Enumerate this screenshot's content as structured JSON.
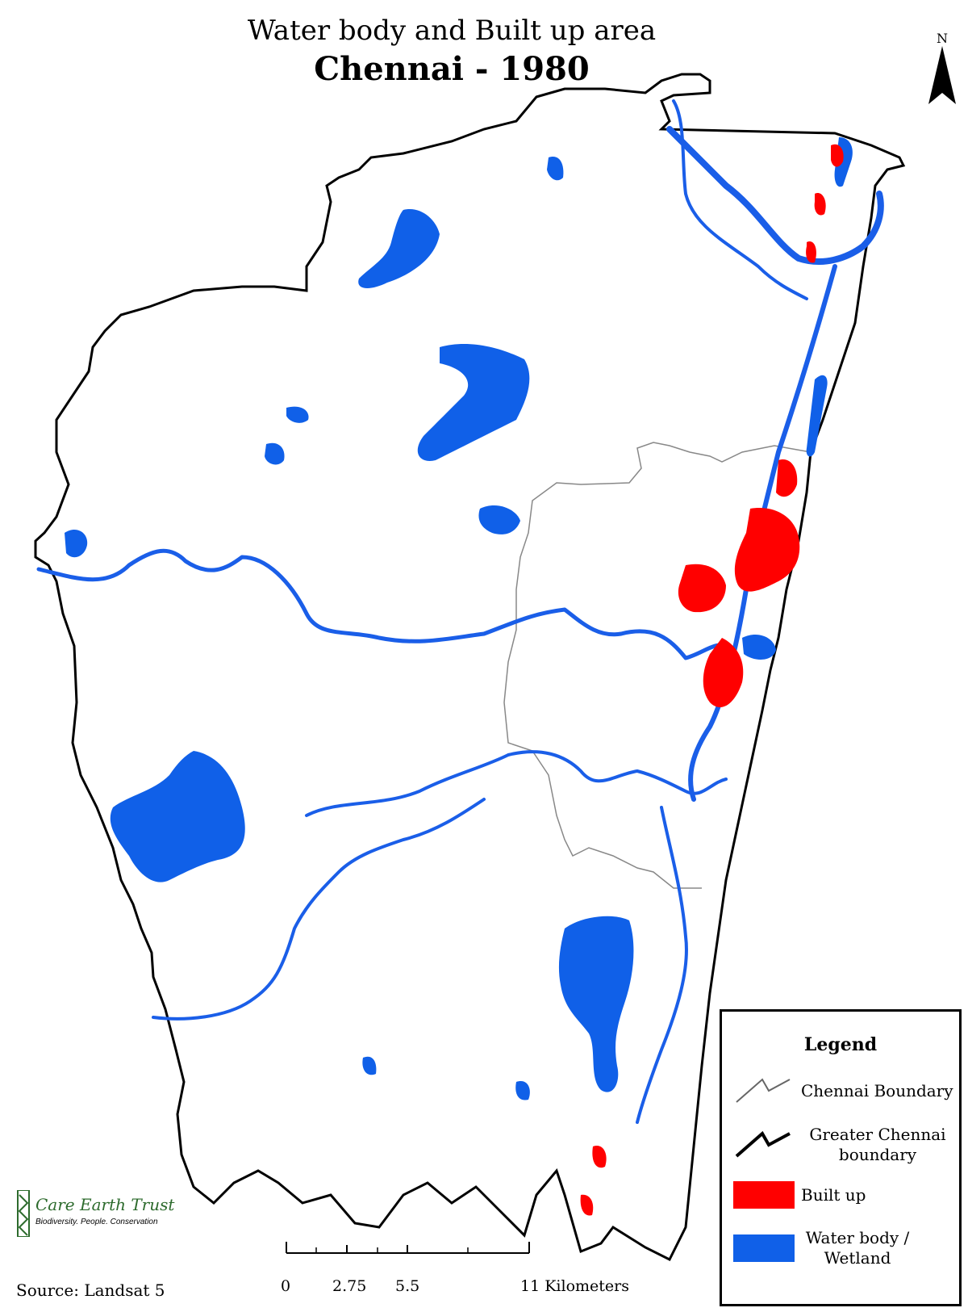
{
  "title": "Water body and Built up area",
  "subtitle": "Chennai - 1980",
  "north_label": "N",
  "legend": {
    "heading": "Legend",
    "items": [
      {
        "label": "Chennai Boundary",
        "symbol": "thin-line"
      },
      {
        "label": "Greater Chennai boundary",
        "symbol": "thick-line"
      },
      {
        "label": "Built up",
        "symbol": "fill",
        "color": "#ff0000"
      },
      {
        "label": "Water body / Wetland",
        "symbol": "fill",
        "color": "#1060e8"
      }
    ]
  },
  "colors": {
    "water": "#1060e8",
    "built_up": "#ff0000",
    "boundary": "#000000",
    "chennai_boundary": "#888888"
  },
  "scale_bar": {
    "ticks": [
      "0",
      "2.75",
      "5.5",
      "11 Kilometers"
    ]
  },
  "logo": {
    "name": "Care Earth Trust",
    "tagline": "Biodiversity. People. Conservation"
  },
  "source": "Source: Landsat 5"
}
